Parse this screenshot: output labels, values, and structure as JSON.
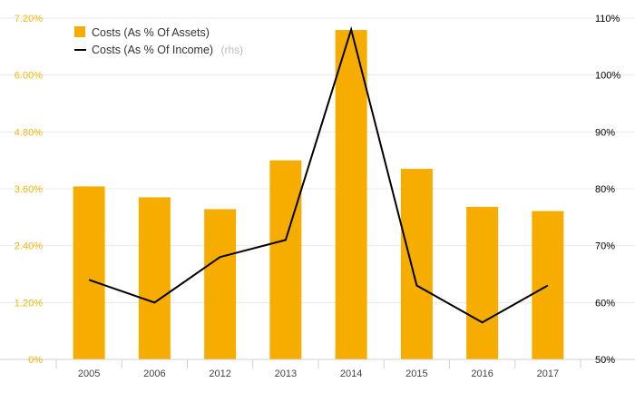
{
  "chart_data": {
    "type": "bar",
    "categories": [
      "2005",
      "2006",
      "2012",
      "2013",
      "2014",
      "2015",
      "2016",
      "2017"
    ],
    "series": [
      {
        "name": "Costs (As % Of Assets)",
        "type": "bar",
        "axis": "left",
        "color": "#f7ad00",
        "values": [
          3.65,
          3.42,
          3.17,
          4.2,
          6.95,
          4.02,
          3.22,
          3.13
        ]
      },
      {
        "name": "Costs (As % Of Income)",
        "type": "line",
        "axis": "right",
        "color": "#000000",
        "values": [
          64,
          60,
          68,
          71,
          108,
          63,
          56.5,
          63
        ]
      }
    ],
    "y_left": {
      "ticks": [
        "0%",
        "1.20%",
        "2.40%",
        "3.60%",
        "4.80%",
        "6.00%",
        "7.20%"
      ],
      "ylim": [
        0,
        7.2
      ],
      "color": "#f2b705"
    },
    "y_right": {
      "ticks": [
        "50%",
        "60%",
        "70%",
        "80%",
        "90%",
        "100%",
        "110%"
      ],
      "ylim": [
        50,
        110
      ],
      "color": "#000000"
    },
    "legend": {
      "position": "top-left",
      "rhs_suffix": "(rhs)"
    },
    "grid": true
  }
}
